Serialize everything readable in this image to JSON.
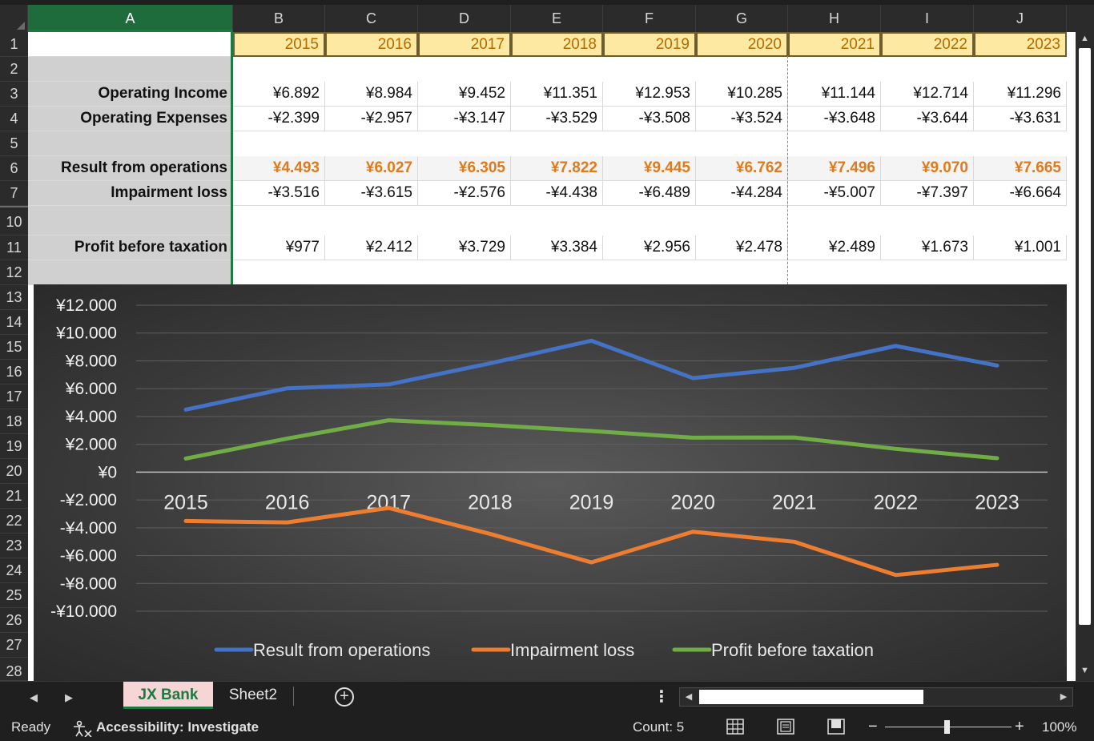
{
  "columns": [
    "A",
    "B",
    "C",
    "D",
    "E",
    "F",
    "G",
    "H",
    "I",
    "J"
  ],
  "selected_column": "A",
  "rows": [
    "1",
    "2",
    "3",
    "4",
    "5",
    "6",
    "7",
    "10",
    "11",
    "12",
    "13",
    "14",
    "15",
    "16",
    "17",
    "18",
    "19",
    "20",
    "21",
    "22",
    "23",
    "24",
    "25",
    "26",
    "27",
    "28"
  ],
  "years": [
    "2015",
    "2016",
    "2017",
    "2018",
    "2019",
    "2020",
    "2021",
    "2022",
    "2023"
  ],
  "table": {
    "operating_income": {
      "label": "Operating Income",
      "values": [
        "¥6.892",
        "¥8.984",
        "¥9.452",
        "¥11.351",
        "¥12.953",
        "¥10.285",
        "¥11.144",
        "¥12.714",
        "¥11.296"
      ]
    },
    "operating_expenses": {
      "label": "Operating Expenses",
      "values": [
        "-¥2.399",
        "-¥2.957",
        "-¥3.147",
        "-¥3.529",
        "-¥3.508",
        "-¥3.524",
        "-¥3.648",
        "-¥3.644",
        "-¥3.631"
      ]
    },
    "result_from_operations": {
      "label": "Result from operations",
      "values": [
        "¥4.493",
        "¥6.027",
        "¥6.305",
        "¥7.822",
        "¥9.445",
        "¥6.762",
        "¥7.496",
        "¥9.070",
        "¥7.665"
      ]
    },
    "impairment_loss": {
      "label": "Impairment loss",
      "values": [
        "-¥3.516",
        "-¥3.615",
        "-¥2.576",
        "-¥4.438",
        "-¥6.489",
        "-¥4.284",
        "-¥5.007",
        "-¥7.397",
        "-¥6.664"
      ]
    },
    "profit_before_taxation": {
      "label": "Profit before taxation",
      "values": [
        "¥977",
        "¥2.412",
        "¥3.729",
        "¥3.384",
        "¥2.956",
        "¥2.478",
        "¥2.489",
        "¥1.673",
        "¥1.001"
      ]
    }
  },
  "chart_data": {
    "type": "line",
    "title": "",
    "categories": [
      "2015",
      "2016",
      "2017",
      "2018",
      "2019",
      "2020",
      "2021",
      "2022",
      "2023"
    ],
    "ylim": [
      -10000,
      12000
    ],
    "y_ticks": [
      12000,
      10000,
      8000,
      6000,
      4000,
      2000,
      0,
      -2000,
      -4000,
      -6000,
      -8000,
      -10000
    ],
    "y_tick_labels": [
      "¥12.000",
      "¥10.000",
      "¥8.000",
      "¥6.000",
      "¥4.000",
      "¥2.000",
      "¥0",
      "-¥2.000",
      "-¥4.000",
      "-¥6.000",
      "-¥8.000",
      "-¥10.000"
    ],
    "legend_position": "bottom",
    "grid": true,
    "series": [
      {
        "name": "Result from operations",
        "color": "#4472c4",
        "values": [
          4493,
          6027,
          6305,
          7822,
          9445,
          6762,
          7496,
          9070,
          7665
        ]
      },
      {
        "name": "Impairment loss",
        "color": "#ed7d31",
        "values": [
          -3516,
          -3615,
          -2576,
          -4438,
          -6489,
          -4284,
          -5007,
          -7397,
          -6664
        ]
      },
      {
        "name": "Profit before taxation",
        "color": "#70ad47",
        "values": [
          977,
          2412,
          3729,
          3384,
          2956,
          2478,
          2489,
          1673,
          1001
        ]
      }
    ]
  },
  "sheet_tabs": {
    "active": "JX Bank",
    "other": "Sheet2"
  },
  "status": {
    "ready": "Ready",
    "accessibility": "Accessibility: Investigate",
    "count": "Count: 5",
    "zoom": "100%",
    "zoom_minus": "−",
    "zoom_plus": "+"
  },
  "colors": {
    "accent_green": "#1a7a3f",
    "year_fill": "#fde9a2",
    "highlight_orange": "#e07a1a"
  }
}
